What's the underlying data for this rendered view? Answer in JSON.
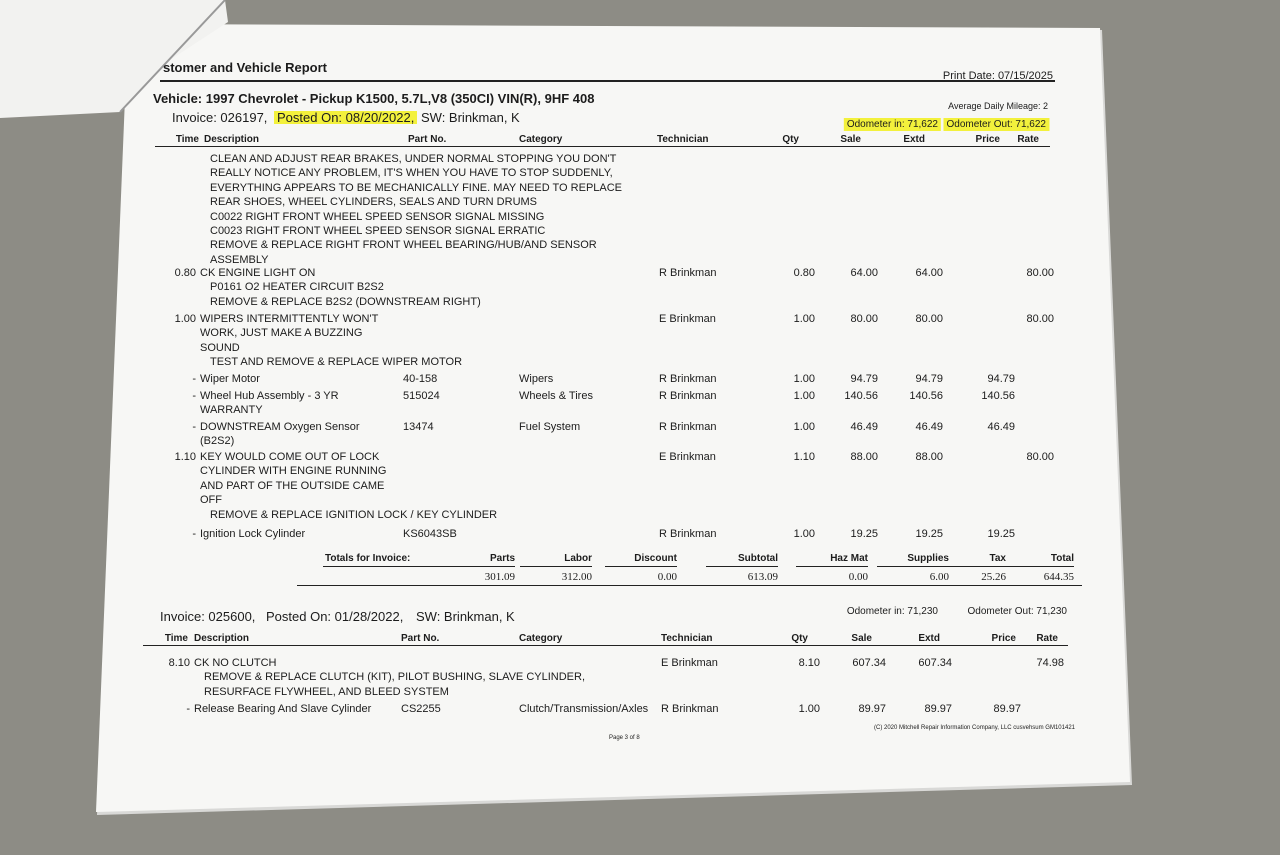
{
  "header": {
    "title": "stomer and Vehicle Report",
    "print_date": "Print Date: 07/15/2025",
    "vehicle": "Vehicle: 1997 Chevrolet - Pickup K1500, 5.7L,V8 (350CI) VIN(R), 9HF 408",
    "avg_mileage": "Average Daily Mileage: 2"
  },
  "invoices": [
    {
      "invoice": "Invoice: 026197,",
      "posted": "Posted On: 08/20/2022,",
      "sw": "SW: Brinkman, K",
      "odometer_in": "Odometer in: 71,622",
      "odometer_out": "Odometer Out: 71,622",
      "columns": [
        "Time",
        "Description",
        "Part No.",
        "Category",
        "Technician",
        "Qty",
        "Sale",
        "Extd",
        "Price",
        "Rate"
      ],
      "rows": [
        {
          "notes": [
            "CLEAN AND ADJUST REAR BRAKES, UNDER NORMAL STOPPING YOU DON'T",
            "REALLY NOTICE ANY PROBLEM, IT'S WHEN YOU HAVE TO STOP SUDDENLY,",
            "EVERYTHING APPEARS TO BE MECHANICALLY FINE. MAY NEED TO REPLACE",
            "REAR SHOES, WHEEL CYLINDERS, SEALS AND TURN DRUMS",
            "C0022 RIGHT FRONT WHEEL SPEED SENSOR SIGNAL MISSING",
            "C0023 RIGHT FRONT WHEEL SPEED SENSOR SIGNAL ERRATIC",
            "REMOVE & REPLACE RIGHT FRONT WHEEL BEARING/HUB/AND SENSOR",
            "ASSEMBLY"
          ]
        },
        {
          "time": "0.80",
          "description": [
            "CK ENGINE LIGHT ON"
          ],
          "notes": [
            "P0161 O2 HEATER CIRCUIT B2S2",
            "REMOVE & REPLACE B2S2 (DOWNSTREAM RIGHT)"
          ],
          "technician": "R Brinkman",
          "qty": "0.80",
          "sale": "64.00",
          "extd": "64.00",
          "rate": "80.00"
        },
        {
          "time": "1.00",
          "description": [
            "WIPERS INTERMITTENTLY WON'T",
            "WORK, JUST MAKE A BUZZING",
            "SOUND"
          ],
          "notes": [
            "TEST AND REMOVE & REPLACE WIPER MOTOR"
          ],
          "technician": "E Brinkman",
          "qty": "1.00",
          "sale": "80.00",
          "extd": "80.00",
          "rate": "80.00"
        },
        {
          "time": "-",
          "description": [
            "Wiper Motor"
          ],
          "part": "40-158",
          "category": "Wipers",
          "technician": "R Brinkman",
          "qty": "1.00",
          "sale": "94.79",
          "extd": "94.79",
          "price": "94.79"
        },
        {
          "time": "-",
          "description": [
            "Wheel Hub Assembly - 3 YR",
            "WARRANTY"
          ],
          "part": "515024",
          "category": "Wheels & Tires",
          "technician": "R Brinkman",
          "qty": "1.00",
          "sale": "140.56",
          "extd": "140.56",
          "price": "140.56"
        },
        {
          "time": "-",
          "description": [
            "DOWNSTREAM Oxygen Sensor",
            "(B2S2)"
          ],
          "part": "13474",
          "category": "Fuel System",
          "technician": "R Brinkman",
          "qty": "1.00",
          "sale": "46.49",
          "extd": "46.49",
          "price": "46.49"
        },
        {
          "time": "1.10",
          "description": [
            "KEY WOULD COME OUT OF LOCK",
            "CYLINDER WITH ENGINE RUNNING",
            "AND PART OF THE OUTSIDE CAME",
            "OFF"
          ],
          "notes": [
            "REMOVE & REPLACE IGNITION LOCK / KEY CYLINDER"
          ],
          "technician": "E Brinkman",
          "qty": "1.10",
          "sale": "88.00",
          "extd": "88.00",
          "rate": "80.00"
        },
        {
          "time": "-",
          "description": [
            "Ignition Lock Cylinder"
          ],
          "part": "KS6043SB",
          "technician": "R Brinkman",
          "qty": "1.00",
          "sale": "19.25",
          "extd": "19.25",
          "price": "19.25"
        }
      ],
      "totals": {
        "label": "Totals for Invoice:",
        "headers": [
          "Parts",
          "Labor",
          "Discount",
          "Subtotal",
          "Haz Mat",
          "Supplies",
          "Tax",
          "Total"
        ],
        "values": [
          "301.09",
          "312.00",
          "0.00",
          "613.09",
          "0.00",
          "6.00",
          "25.26",
          "644.35"
        ]
      }
    },
    {
      "invoice": "Invoice: 025600,",
      "posted": "Posted On: 01/28/2022,",
      "sw": "SW: Brinkman, K",
      "odometer_in": "Odometer in: 71,230",
      "odometer_out": "Odometer Out: 71,230",
      "columns": [
        "Time",
        "Description",
        "Part No.",
        "Category",
        "Technician",
        "Qty",
        "Sale",
        "Extd",
        "Price",
        "Rate"
      ],
      "rows": [
        {
          "time": "8.10",
          "description": [
            "CK NO CLUTCH"
          ],
          "notes": [
            "REMOVE & REPLACE CLUTCH (KIT), PILOT BUSHING, SLAVE CYLINDER,",
            "RESURFACE FLYWHEEL, AND BLEED SYSTEM"
          ],
          "technician": "E Brinkman",
          "qty": "8.10",
          "sale": "607.34",
          "extd": "607.34",
          "rate": "74.98"
        },
        {
          "time": "-",
          "description": [
            "Release Bearing And Slave Cylinder"
          ],
          "part": "CS2255",
          "category": "Clutch/Transmission/Axles",
          "technician": "R Brinkman",
          "qty": "1.00",
          "sale": "89.97",
          "extd": "89.97",
          "price": "89.97"
        }
      ]
    }
  ],
  "footer": {
    "page": "Page 3 of 8",
    "copyright": "(C) 2020 Mitchell Repair Information Company, LLC cusvehsum GM101421"
  }
}
